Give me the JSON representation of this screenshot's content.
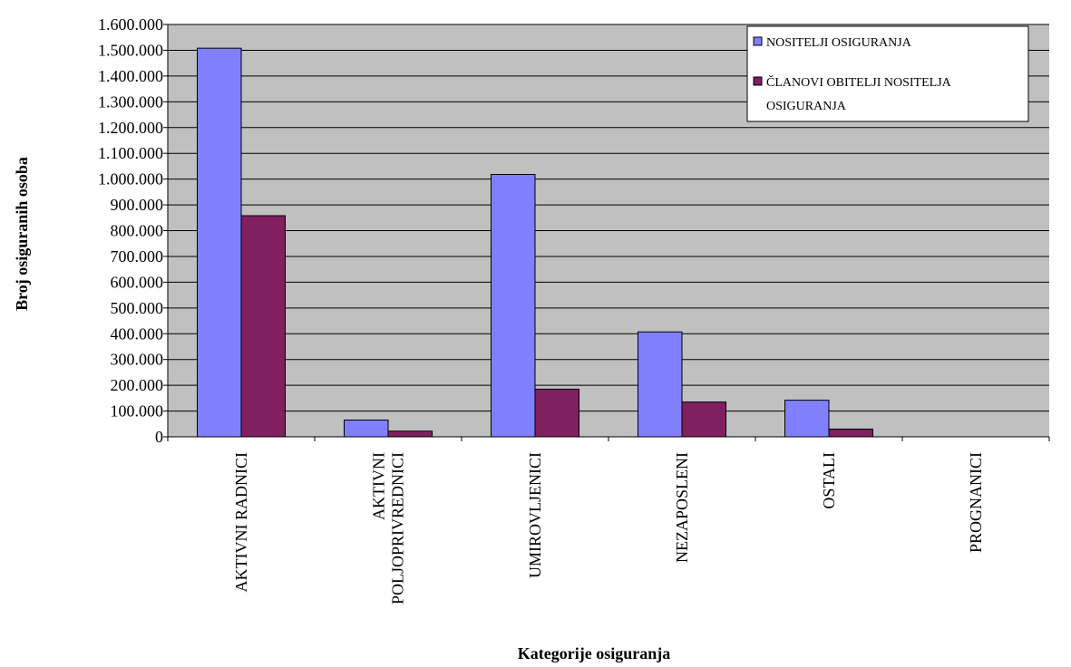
{
  "chart_data": {
    "type": "bar",
    "title": "",
    "xlabel": "Kategorije osiguranja",
    "ylabel": "Broj osiguranih osoba",
    "ylim": [
      0,
      1600000
    ],
    "yticks": [
      0,
      100000,
      200000,
      300000,
      400000,
      500000,
      600000,
      700000,
      800000,
      900000,
      1000000,
      1100000,
      1200000,
      1300000,
      1400000,
      1500000,
      1600000
    ],
    "ytick_labels": [
      "0",
      "100.000",
      "200.000",
      "300.000",
      "400.000",
      "500.000",
      "600.000",
      "700.000",
      "800.000",
      "900.000",
      "1.000.000",
      "1.100.000",
      "1.200.000",
      "1.300.000",
      "1.400.000",
      "1.500.000",
      "1.600.000"
    ],
    "categories": [
      [
        "AKTIVNI  RADNICI"
      ],
      [
        "AKTIVNI",
        "POLJOPRIVREDNICI"
      ],
      [
        "UMIROVLJENICI"
      ],
      [
        "NEZAPOSLENI"
      ],
      [
        "OSTALI"
      ],
      [
        "PROGNANICI"
      ]
    ],
    "series": [
      {
        "name": "NOSITELJI OSIGURANJA",
        "color": "#8080ff",
        "values": [
          1508000,
          65000,
          1018000,
          407000,
          142000,
          0
        ]
      },
      {
        "name": "ČLANOVI OBITELJI NOSITELJA OSIGURANJA",
        "legend_lines": [
          "ČLANOVI OBITELJI NOSITELJA",
          "OSIGURANJA"
        ],
        "color": "#802060",
        "values": [
          858000,
          22000,
          185000,
          135000,
          30000,
          0
        ]
      }
    ],
    "plot_background": "#c0c0c0",
    "grid": true,
    "legend": "top-right"
  }
}
